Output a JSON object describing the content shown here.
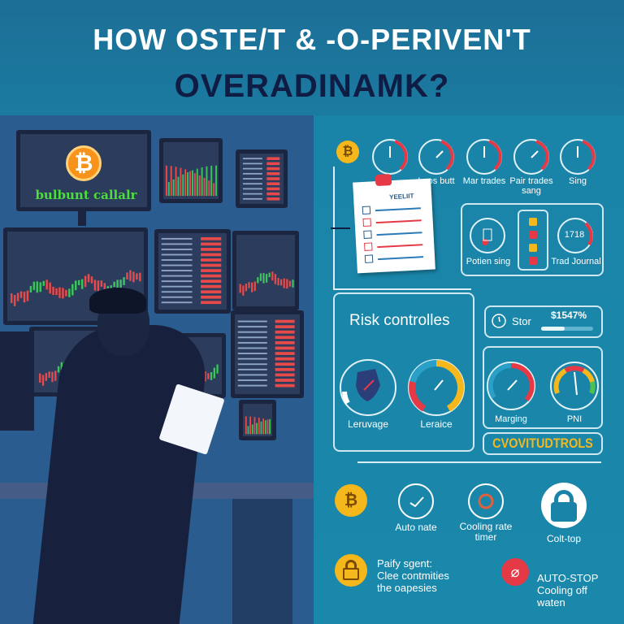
{
  "title": {
    "line1": "HOW OSTE/T & -O-PERIVEN'T",
    "line2": "OVERADINAMK?"
  },
  "left_scene": {
    "monitor_text": "bulbunt callalr",
    "coin_symbol": "₿"
  },
  "top_row": {
    "coin_symbol": "₿",
    "gauges": [
      {
        "label": "Leps butt"
      },
      {
        "label": "Mar trades"
      },
      {
        "label": "Pair trades sang"
      },
      {
        "label": "Sing"
      }
    ]
  },
  "checklist": {
    "title": "YEELIIT",
    "checks": 5
  },
  "journal_box": {
    "left_label": "Potien sing",
    "right_label": "Trad Journal",
    "right_readout": "1718"
  },
  "risk": {
    "title": "Risk controlles",
    "gauges": [
      {
        "label": "Leruvage"
      },
      {
        "label": "Leraice"
      }
    ]
  },
  "stop_box": {
    "label": "Stor",
    "value": "$1547%",
    "progress": 0.45
  },
  "margin_box": {
    "gauges": [
      {
        "label": "Marging"
      },
      {
        "label": "PNI"
      }
    ]
  },
  "banner": {
    "text": "CVOVITUDTROLS"
  },
  "bottom_row": {
    "coin_symbol": "₿",
    "items": [
      {
        "label": "Auto nate"
      },
      {
        "label": "Cooling rate timer"
      },
      {
        "label": "Colt-top"
      }
    ]
  },
  "notes": [
    {
      "lines": [
        "Paify sgent:",
        "Clee contmities",
        "the oapesies"
      ]
    },
    {
      "lines": [
        "AUTO-STOP",
        "Cooling off",
        "waten"
      ]
    }
  ],
  "colors": {
    "accent_yellow": "#f5b81c",
    "alert_red": "#e63946",
    "teal": "#1a84a8",
    "navy": "#0f1d45"
  }
}
